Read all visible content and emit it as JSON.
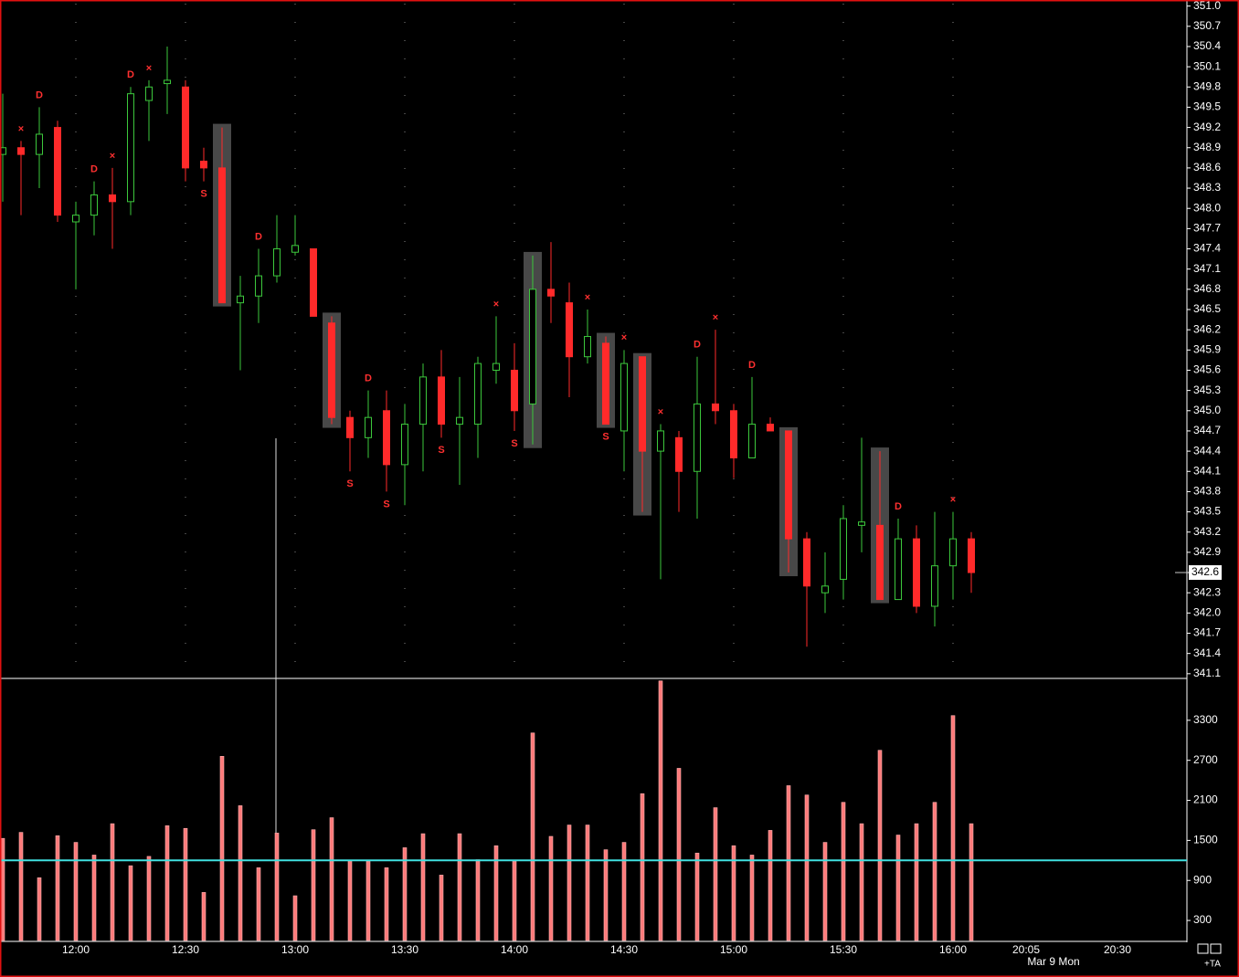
{
  "chart_data": {
    "type": "candlestick",
    "categories": [
      null,
      null,
      null,
      null,
      "12:00",
      null,
      null,
      null,
      null,
      null,
      "12:30",
      null,
      null,
      null,
      null,
      null,
      "13:00",
      null,
      null,
      null,
      null,
      null,
      "13:30",
      null,
      null,
      null,
      null,
      null,
      "14:00",
      null,
      null,
      null,
      null,
      null,
      "14:30",
      null,
      null,
      null,
      null,
      null,
      "15:00",
      null,
      null,
      null,
      null,
      null,
      "15:30",
      null,
      null,
      null,
      null,
      null,
      "16:00",
      null
    ],
    "extra_xticks": [
      "20:05",
      "20:30"
    ],
    "date_label": "Mar 9 Mon",
    "up_color": "#3cc83c",
    "down_color": "#ff2a2a",
    "open": [
      348.8,
      348.9,
      348.8,
      349.2,
      347.8,
      347.9,
      348.2,
      348.1,
      349.6,
      349.85,
      349.8,
      348.7,
      348.6,
      346.6,
      346.7,
      347.0,
      347.35,
      347.4,
      346.3,
      344.9,
      344.6,
      345.0,
      344.2,
      344.8,
      345.5,
      344.8,
      344.8,
      345.6,
      345.6,
      345.1,
      346.8,
      346.6,
      345.8,
      346.0,
      344.7,
      345.8,
      344.4,
      344.6,
      344.1,
      345.1,
      345.0,
      344.3,
      344.8,
      344.7,
      343.1,
      342.3,
      342.5,
      343.3,
      343.3,
      342.2,
      343.1,
      342.1,
      342.7,
      343.1
    ],
    "high": [
      349.7,
      349.0,
      349.5,
      349.3,
      348.1,
      348.4,
      348.6,
      349.8,
      349.9,
      350.4,
      349.9,
      348.9,
      349.2,
      347.0,
      347.4,
      347.9,
      347.9,
      347.4,
      346.4,
      345.0,
      345.3,
      345.3,
      345.1,
      345.7,
      345.9,
      345.5,
      345.8,
      346.4,
      346.0,
      347.3,
      347.5,
      346.9,
      346.5,
      346.1,
      345.9,
      345.8,
      344.8,
      344.7,
      345.8,
      346.2,
      345.1,
      345.5,
      344.9,
      344.7,
      343.2,
      342.9,
      343.6,
      344.6,
      344.4,
      343.4,
      343.3,
      343.5,
      343.5,
      343.2
    ],
    "low": [
      348.1,
      347.9,
      348.3,
      347.8,
      346.8,
      347.6,
      347.4,
      347.9,
      349.0,
      349.4,
      348.4,
      348.4,
      346.6,
      345.6,
      346.3,
      346.9,
      347.3,
      346.4,
      344.8,
      344.1,
      344.3,
      343.8,
      343.6,
      344.1,
      344.6,
      343.9,
      344.3,
      345.4,
      344.7,
      344.5,
      346.3,
      345.2,
      345.7,
      344.8,
      344.1,
      343.5,
      342.5,
      343.5,
      343.4,
      344.8,
      344.0,
      344.3,
      344.7,
      342.6,
      341.5,
      342.0,
      342.2,
      342.9,
      342.2,
      342.2,
      342.0,
      341.8,
      342.2,
      342.3
    ],
    "close": [
      348.9,
      348.8,
      349.1,
      347.9,
      347.9,
      348.2,
      348.1,
      349.7,
      349.8,
      349.9,
      348.6,
      348.6,
      346.6,
      346.7,
      347.0,
      347.4,
      347.45,
      346.4,
      344.9,
      344.6,
      344.9,
      344.2,
      344.8,
      345.5,
      344.8,
      344.9,
      345.7,
      345.7,
      345.0,
      346.8,
      346.7,
      345.8,
      346.1,
      344.8,
      345.7,
      344.4,
      344.7,
      344.1,
      345.1,
      345.0,
      344.3,
      344.8,
      344.7,
      343.1,
      342.4,
      342.4,
      343.4,
      343.35,
      342.2,
      343.1,
      342.1,
      342.7,
      343.1,
      342.6
    ],
    "highlighted": [
      12,
      18,
      29,
      33,
      35,
      43,
      48
    ],
    "annotations": [
      {
        "bar": 1,
        "text": "×",
        "position": "above"
      },
      {
        "bar": 2,
        "text": "D",
        "position": "above"
      },
      {
        "bar": 5,
        "text": "D",
        "position": "above"
      },
      {
        "bar": 6,
        "text": "×",
        "position": "above"
      },
      {
        "bar": 7,
        "text": "D",
        "position": "above"
      },
      {
        "bar": 8,
        "text": "×",
        "position": "above"
      },
      {
        "bar": 11,
        "text": "S",
        "position": "below"
      },
      {
        "bar": 14,
        "text": "D",
        "position": "above"
      },
      {
        "bar": 19,
        "text": "S",
        "position": "below"
      },
      {
        "bar": 20,
        "text": "D",
        "position": "above"
      },
      {
        "bar": 21,
        "text": "S",
        "position": "below"
      },
      {
        "bar": 24,
        "text": "S",
        "position": "below"
      },
      {
        "bar": 27,
        "text": "×",
        "position": "above"
      },
      {
        "bar": 28,
        "text": "S",
        "position": "below"
      },
      {
        "bar": 32,
        "text": "×",
        "position": "above"
      },
      {
        "bar": 33,
        "text": "S",
        "position": "below"
      },
      {
        "bar": 34,
        "text": "×",
        "position": "above"
      },
      {
        "bar": 36,
        "text": "×",
        "position": "above"
      },
      {
        "bar": 38,
        "text": "D",
        "position": "above"
      },
      {
        "bar": 39,
        "text": "×",
        "position": "above"
      },
      {
        "bar": 41,
        "text": "D",
        "position": "above"
      },
      {
        "bar": 49,
        "text": "D",
        "position": "above"
      },
      {
        "bar": 52,
        "text": "×",
        "position": "above"
      }
    ],
    "ylim": [
      341.03,
      351.09
    ],
    "yticks": [
      {
        "value": 351.0,
        "label": "351.0"
      },
      350.7,
      350.4,
      350.1,
      349.8,
      349.5,
      349.2,
      348.9,
      348.6,
      348.3,
      {
        "value": 348.0,
        "label": "348.0"
      },
      347.7,
      347.4,
      347.1,
      346.8,
      346.5,
      346.2,
      345.9,
      345.6,
      345.3,
      {
        "value": 345.0,
        "label": "345.0"
      },
      344.7,
      344.4,
      344.1,
      343.8,
      343.5,
      343.2,
      342.9,
      342.6,
      342.3,
      {
        "value": 342.0,
        "label": "342.0"
      },
      341.7,
      341.4,
      341.1
    ],
    "last_price": 342.6,
    "volume": {
      "values": [
        1530,
        1620,
        940,
        1570,
        1470,
        1280,
        1750,
        1120,
        1260,
        1720,
        1680,
        720,
        2760,
        2020,
        1090,
        1610,
        670,
        1660,
        1840,
        1200,
        1190,
        1090,
        1390,
        1600,
        980,
        1600,
        1210,
        1420,
        1190,
        3110,
        1560,
        1730,
        1730,
        1360,
        1470,
        2200,
        3890,
        2580,
        1310,
        1990,
        1420,
        1280,
        1650,
        2320,
        2180,
        1470,
        2070,
        1750,
        2850,
        1580,
        1750,
        2070,
        3370,
        1750
      ],
      "color": "#ff7a7a",
      "ylim": [
        0,
        3900
      ],
      "yticks": [
        300,
        900,
        1500,
        2100,
        2700,
        3300
      ],
      "reference_line": 1200,
      "reference_color": "#40e0e0"
    },
    "corner_label": "+TA"
  }
}
